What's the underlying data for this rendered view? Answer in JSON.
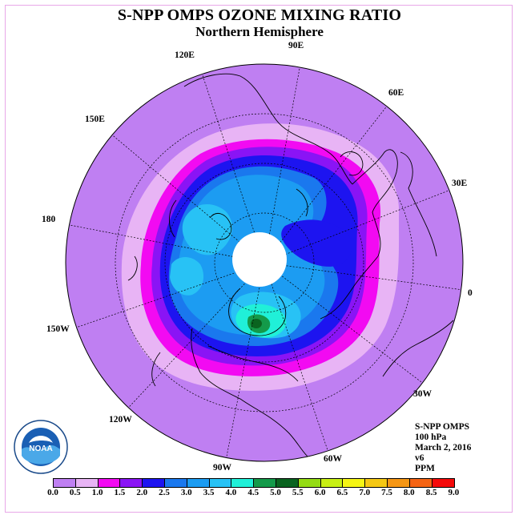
{
  "title": "S-NPP OMPS OZONE MIXING RATIO",
  "subtitle": "Northern Hemisphere",
  "longitude_labels": [
    {
      "text": "90E",
      "id": "lon-90e"
    },
    {
      "text": "60E",
      "id": "lon-60e"
    },
    {
      "text": "30E",
      "id": "lon-30e"
    },
    {
      "text": "0",
      "id": "lon-0"
    },
    {
      "text": "30W",
      "id": "lon-30w"
    },
    {
      "text": "60W",
      "id": "lon-60w"
    },
    {
      "text": "90W",
      "id": "lon-90w"
    },
    {
      "text": "120W",
      "id": "lon-120w"
    },
    {
      "text": "150W",
      "id": "lon-150w"
    },
    {
      "text": "180",
      "id": "lon-180"
    },
    {
      "text": "150E",
      "id": "lon-150e"
    },
    {
      "text": "120E",
      "id": "lon-120e"
    }
  ],
  "info": {
    "instrument": "S-NPP OMPS",
    "level": "100 hPa",
    "date": "March 2, 2016",
    "version": "v6",
    "units": "PPM"
  },
  "logo_text": "NOAA",
  "colorbar": {
    "labels": [
      "0.0",
      "0.5",
      "1.0",
      "1.5",
      "2.0",
      "2.5",
      "3.0",
      "3.5",
      "4.0",
      "4.5",
      "5.0",
      "5.5",
      "6.0",
      "6.5",
      "7.0",
      "7.5",
      "8.0",
      "8.5",
      "9.0"
    ],
    "colors": [
      "#bf7ff2",
      "#e8b4f5",
      "#f20af2",
      "#8a14f5",
      "#1d14f0",
      "#1a78ee",
      "#1c9cf2",
      "#28c2f5",
      "#20f0d8",
      "#149a4a",
      "#0a6420",
      "#94dc14",
      "#c8f014",
      "#f5f514",
      "#f5c814",
      "#f59614",
      "#f56414",
      "#f50a0a",
      "#8a5a46"
    ]
  }
}
